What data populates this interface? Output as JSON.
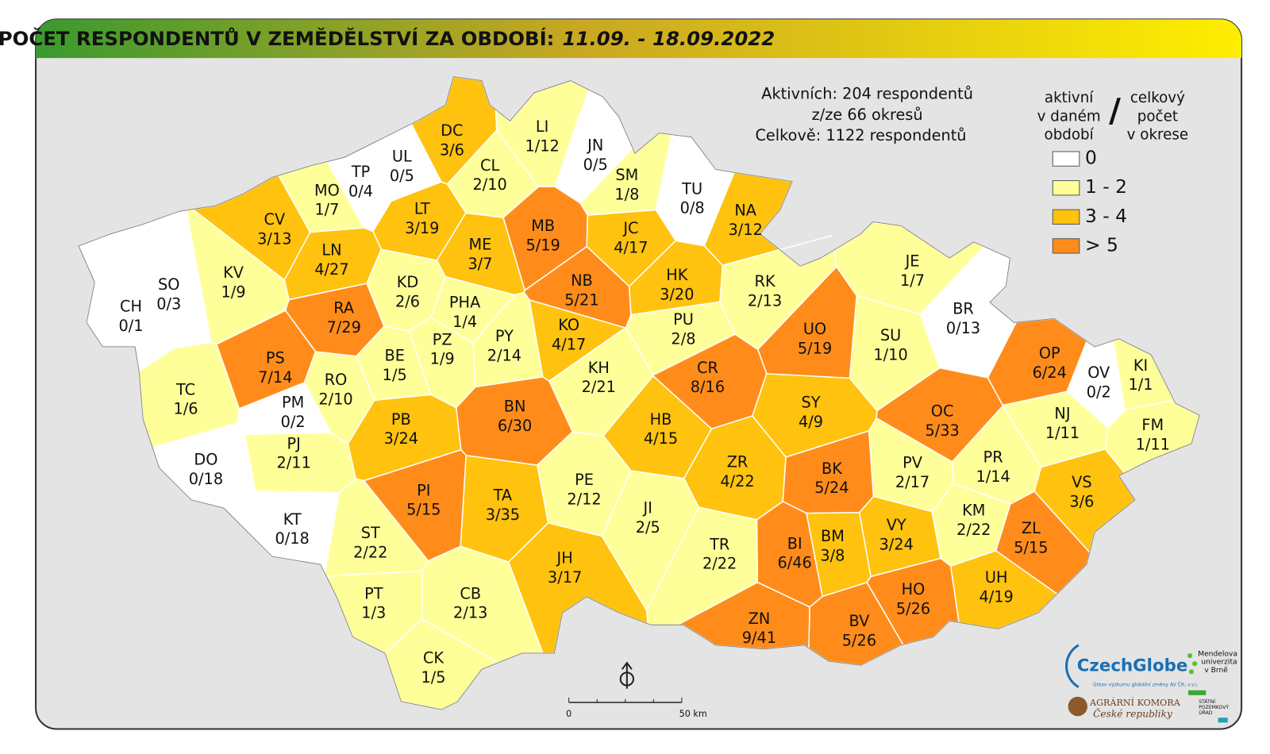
{
  "header": {
    "title": "POČET RESPONDENTŮ V ZEMĚDĚLSTVÍ ZA OBDOBÍ:",
    "period": "11.09. - 18.09.2022"
  },
  "stats": [
    "Aktivních: 204 respondentů",
    "z/ze 66 okresů",
    "Celkově: 1122 respondentů"
  ],
  "legend": {
    "left": [
      "aktivní",
      "v daném",
      "období"
    ],
    "slash": "/",
    "right": [
      "celkový",
      "počet",
      "v okrese"
    ],
    "items": [
      {
        "label": "0",
        "color": "#ffffff"
      },
      {
        "label": "1 - 2",
        "color": "#ffff99"
      },
      {
        "label": "3 - 4",
        "color": "#ffc20e"
      },
      {
        "label": "> 5",
        "color": "#ff8c1a"
      }
    ]
  },
  "districts": [
    {
      "code": "CH",
      "label": "0/1",
      "color": "#ffffff"
    },
    {
      "code": "SO",
      "label": "0/3",
      "color": "#ffffff"
    },
    {
      "code": "KV",
      "label": "1/9",
      "color": "#ffff99"
    },
    {
      "code": "CV",
      "label": "3/13",
      "color": "#ffc20e"
    },
    {
      "code": "MO",
      "label": "1/7",
      "color": "#ffff99"
    },
    {
      "code": "TP",
      "label": "0/4",
      "color": "#ffffff"
    },
    {
      "code": "UL",
      "label": "0/5",
      "color": "#ffffff"
    },
    {
      "code": "DC",
      "label": "3/6",
      "color": "#ffc20e"
    },
    {
      "code": "LI",
      "label": "1/12",
      "color": "#ffff99"
    },
    {
      "code": "JN",
      "label": "0/5",
      "color": "#ffffff"
    },
    {
      "code": "CL",
      "label": "2/10",
      "color": "#ffff99"
    },
    {
      "code": "SM",
      "label": "1/8",
      "color": "#ffff99"
    },
    {
      "code": "TU",
      "label": "0/8",
      "color": "#ffffff"
    },
    {
      "code": "NA",
      "label": "3/12",
      "color": "#ffc20e"
    },
    {
      "code": "LT",
      "label": "3/19",
      "color": "#ffc20e"
    },
    {
      "code": "LN",
      "label": "4/27",
      "color": "#ffc20e"
    },
    {
      "code": "ME",
      "label": "3/7",
      "color": "#ffc20e"
    },
    {
      "code": "MB",
      "label": "5/19",
      "color": "#ff8c1a"
    },
    {
      "code": "JC",
      "label": "4/17",
      "color": "#ffc20e"
    },
    {
      "code": "KD",
      "label": "2/6",
      "color": "#ffff99"
    },
    {
      "code": "RA",
      "label": "7/29",
      "color": "#ff8c1a"
    },
    {
      "code": "PHA",
      "label": "1/4",
      "color": "#ffff99"
    },
    {
      "code": "NB",
      "label": "5/21",
      "color": "#ff8c1a"
    },
    {
      "code": "HK",
      "label": "3/20",
      "color": "#ffc20e"
    },
    {
      "code": "RK",
      "label": "2/13",
      "color": "#ffff99"
    },
    {
      "code": "PS",
      "label": "7/14",
      "color": "#ff8c1a"
    },
    {
      "code": "BE",
      "label": "1/5",
      "color": "#ffff99"
    },
    {
      "code": "PZ",
      "label": "1/9",
      "color": "#ffff99"
    },
    {
      "code": "PY",
      "label": "2/14",
      "color": "#ffff99"
    },
    {
      "code": "KO",
      "label": "4/17",
      "color": "#ffc20e"
    },
    {
      "code": "PU",
      "label": "2/8",
      "color": "#ffff99"
    },
    {
      "code": "UO",
      "label": "5/19",
      "color": "#ff8c1a"
    },
    {
      "code": "SU",
      "label": "1/10",
      "color": "#ffff99"
    },
    {
      "code": "JE",
      "label": "1/7",
      "color": "#ffff99"
    },
    {
      "code": "BR",
      "label": "0/13",
      "color": "#ffffff"
    },
    {
      "code": "OP",
      "label": "6/24",
      "color": "#ff8c1a"
    },
    {
      "code": "KI",
      "label": "1/1",
      "color": "#ffff99"
    },
    {
      "code": "OV",
      "label": "0/2",
      "color": "#ffffff"
    },
    {
      "code": "TC",
      "label": "1/6",
      "color": "#ffff99"
    },
    {
      "code": "RO",
      "label": "2/10",
      "color": "#ffff99"
    },
    {
      "code": "PM",
      "label": "0/2",
      "color": "#ffffff"
    },
    {
      "code": "KH",
      "label": "2/21",
      "color": "#ffff99"
    },
    {
      "code": "CR",
      "label": "8/16",
      "color": "#ff8c1a"
    },
    {
      "code": "SY",
      "label": "4/9",
      "color": "#ffc20e"
    },
    {
      "code": "OC",
      "label": "5/33",
      "color": "#ff8c1a"
    },
    {
      "code": "NJ",
      "label": "1/11",
      "color": "#ffff99"
    },
    {
      "code": "FM",
      "label": "1/11",
      "color": "#ffff99"
    },
    {
      "code": "BN",
      "label": "6/30",
      "color": "#ff8c1a"
    },
    {
      "code": "PB",
      "label": "3/24",
      "color": "#ffc20e"
    },
    {
      "code": "HB",
      "label": "4/15",
      "color": "#ffc20e"
    },
    {
      "code": "PJ",
      "label": "2/11",
      "color": "#ffff99"
    },
    {
      "code": "DO",
      "label": "0/18",
      "color": "#ffffff"
    },
    {
      "code": "ZR",
      "label": "4/22",
      "color": "#ffc20e"
    },
    {
      "code": "BK",
      "label": "5/24",
      "color": "#ff8c1a"
    },
    {
      "code": "PV",
      "label": "2/17",
      "color": "#ffff99"
    },
    {
      "code": "PR",
      "label": "1/14",
      "color": "#ffff99"
    },
    {
      "code": "VS",
      "label": "3/6",
      "color": "#ffc20e"
    },
    {
      "code": "PE",
      "label": "2/12",
      "color": "#ffff99"
    },
    {
      "code": "PI",
      "label": "5/15",
      "color": "#ff8c1a"
    },
    {
      "code": "TA",
      "label": "3/35",
      "color": "#ffc20e"
    },
    {
      "code": "JI",
      "label": "2/5",
      "color": "#ffff99"
    },
    {
      "code": "KT",
      "label": "0/18",
      "color": "#ffffff"
    },
    {
      "code": "ST",
      "label": "2/22",
      "color": "#ffff99"
    },
    {
      "code": "KM",
      "label": "2/22",
      "color": "#ffff99"
    },
    {
      "code": "ZL",
      "label": "5/15",
      "color": "#ff8c1a"
    },
    {
      "code": "VY",
      "label": "3/24",
      "color": "#ffc20e"
    },
    {
      "code": "BI",
      "label": "6/46",
      "color": "#ff8c1a"
    },
    {
      "code": "BM",
      "label": "3/8",
      "color": "#ffc20e"
    },
    {
      "code": "TR",
      "label": "2/22",
      "color": "#ffff99"
    },
    {
      "code": "JH",
      "label": "3/17",
      "color": "#ffc20e"
    },
    {
      "code": "HO",
      "label": "5/26",
      "color": "#ff8c1a"
    },
    {
      "code": "UH",
      "label": "4/19",
      "color": "#ffc20e"
    },
    {
      "code": "PT",
      "label": "1/3",
      "color": "#ffff99"
    },
    {
      "code": "CB",
      "label": "2/13",
      "color": "#ffff99"
    },
    {
      "code": "ZN",
      "label": "9/41",
      "color": "#ff8c1a"
    },
    {
      "code": "BV",
      "label": "5/26",
      "color": "#ff8c1a"
    },
    {
      "code": "CK",
      "label": "1/5",
      "color": "#ffff99"
    }
  ],
  "scale_bar": {
    "start": "0",
    "end": "50 km"
  },
  "logos": {
    "czechglobe": "CzechGlobe",
    "czechglobe_sub": "Ústav výzkumu globální změny AV ČR, v.v.i.",
    "mendel": [
      "Mendelova",
      "univerzita",
      "v Brně"
    ],
    "agrarni": [
      "AGRÁRNÍ KOMORA",
      "České republiky"
    ],
    "spu": [
      "STÁTNÍ",
      "POZEMKOVÝ",
      "ÚŘAD"
    ]
  }
}
